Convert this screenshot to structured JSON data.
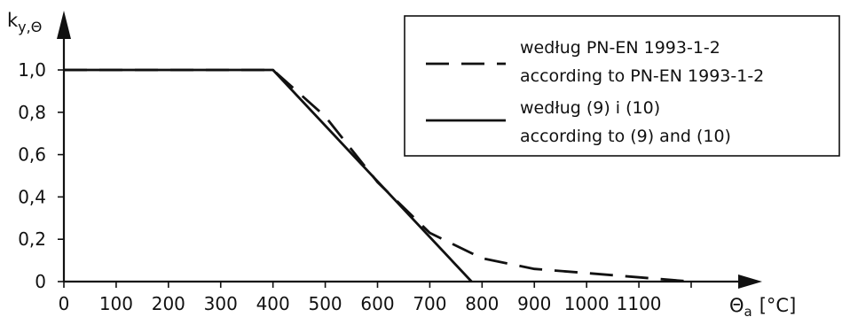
{
  "chart_data": {
    "type": "line",
    "title": "",
    "ylabel": {
      "base": "k",
      "sub": "y,Θ"
    },
    "xlabel": {
      "base": "Θ",
      "sub": "a",
      "unit": "[°C]"
    },
    "xlim": [
      0,
      1200
    ],
    "ylim": [
      0,
      1.0
    ],
    "x_ticks": [
      0,
      100,
      200,
      300,
      400,
      500,
      600,
      700,
      800,
      900,
      1000,
      1100
    ],
    "x_tick_labels": [
      "0",
      "100",
      "200",
      "300",
      "400",
      "500",
      "600",
      "700",
      "800",
      "900",
      "1000",
      "1100"
    ],
    "y_ticks": [
      0,
      0.2,
      0.4,
      0.6,
      0.8,
      1.0
    ],
    "y_tick_labels": [
      "0",
      "0,2",
      "0,4",
      "0,6",
      "0,8",
      "1,0"
    ],
    "grid": false,
    "legend_position": "top-right",
    "series": [
      {
        "name_lines": [
          "według PN-EN 1993-1-2",
          "according to PN-EN 1993-1-2"
        ],
        "style": "dashed",
        "x": [
          0,
          400,
          500,
          600,
          700,
          800,
          900,
          1000,
          1100,
          1200
        ],
        "y": [
          1.0,
          1.0,
          0.78,
          0.47,
          0.23,
          0.11,
          0.06,
          0.04,
          0.02,
          0.0
        ]
      },
      {
        "name_lines": [
          "według (9) i (10)",
          "according to (9) and (10)"
        ],
        "style": "solid",
        "x": [
          0,
          400,
          780
        ],
        "y": [
          1.0,
          1.0,
          0.0
        ]
      }
    ]
  }
}
